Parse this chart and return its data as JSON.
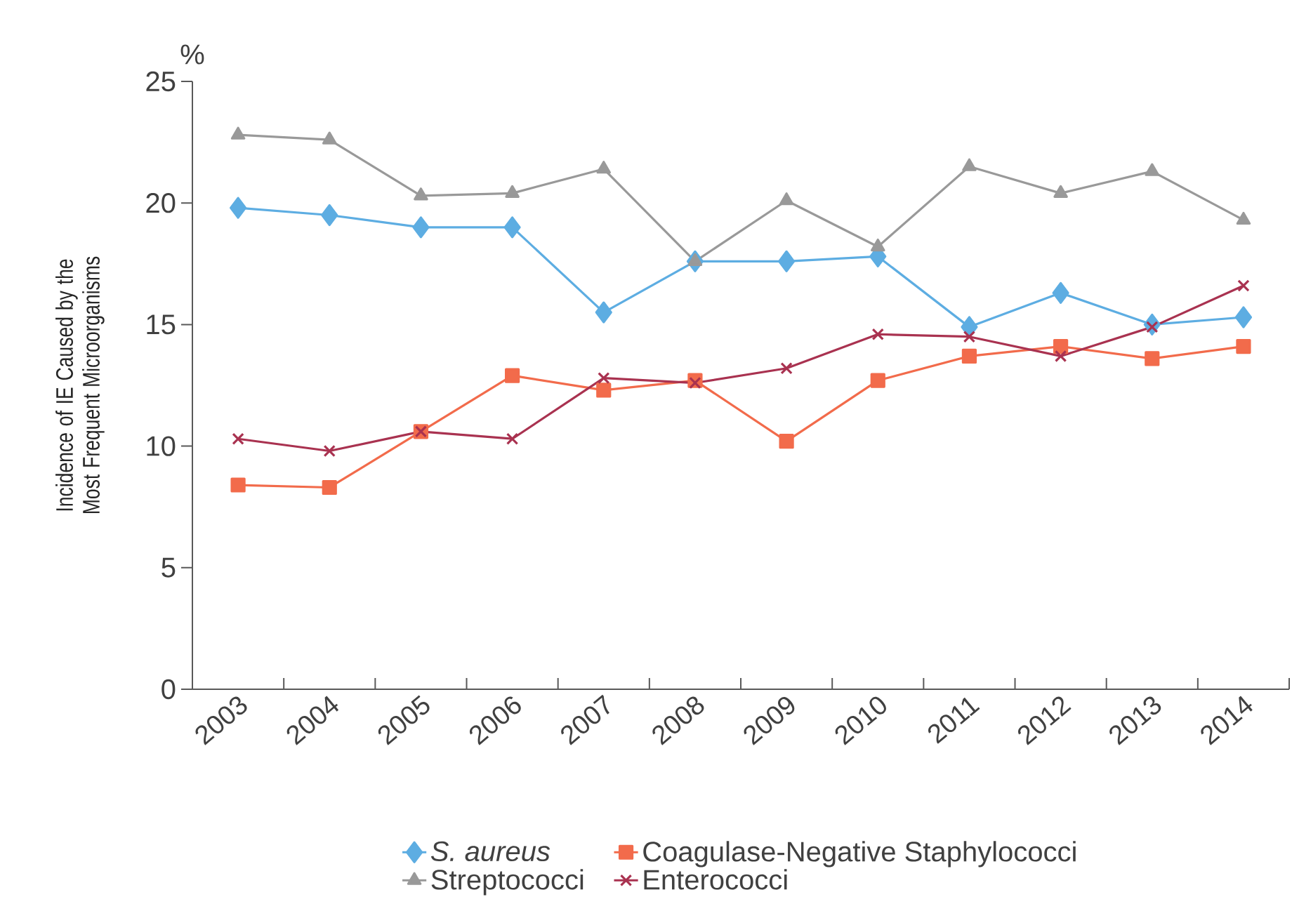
{
  "chart_data": {
    "type": "line",
    "ylabel": "Incidence of IE Caused by the Most Frequent Microorganisms",
    "annotations": [
      "%"
    ],
    "categories": [
      "2003",
      "2004",
      "2005",
      "2006",
      "2007",
      "2008",
      "2009",
      "2010",
      "2011",
      "2012",
      "2013",
      "2014"
    ],
    "ylim": [
      0,
      25
    ],
    "yticks": [
      0,
      5,
      10,
      15,
      20,
      25
    ],
    "legend": "bottom",
    "grid": false,
    "line_style": "solid",
    "series": [
      {
        "name": "*S. aureus*",
        "color": "#5dade2",
        "marker": "diamond",
        "values": [
          19.8,
          19.5,
          19.0,
          19.0,
          15.5,
          17.6,
          17.6,
          17.8,
          14.9,
          16.3,
          15.0,
          15.3
        ]
      },
      {
        "name": "Coagulase-Negative Staphylococci",
        "color": "#f26b4b",
        "marker": "square",
        "values": [
          8.4,
          8.3,
          10.6,
          12.9,
          12.3,
          12.7,
          10.2,
          12.7,
          13.7,
          14.1,
          13.6,
          14.1
        ]
      },
      {
        "name": "Streptococci",
        "color": "#999999",
        "marker": "triangle",
        "values": [
          22.8,
          22.6,
          20.3,
          20.4,
          21.4,
          17.6,
          20.1,
          18.2,
          21.5,
          20.4,
          21.3,
          19.3
        ]
      },
      {
        "name": "Enterococci",
        "color": "#a93250",
        "marker": "cross",
        "values": [
          10.3,
          9.8,
          10.6,
          10.3,
          12.8,
          12.6,
          13.2,
          14.6,
          14.5,
          13.7,
          14.9,
          16.6
        ]
      }
    ]
  }
}
